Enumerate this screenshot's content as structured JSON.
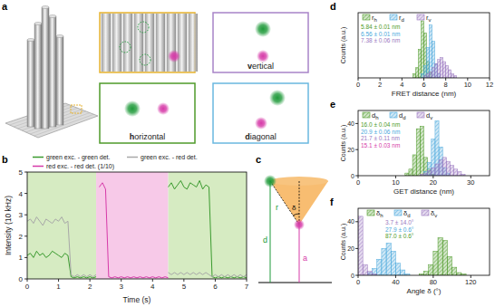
{
  "panel_labels": [
    "a",
    "b",
    "c",
    "d",
    "e",
    "f"
  ],
  "panel_a": {
    "views": [
      "vertical",
      "horizontal",
      "diagonal"
    ]
  },
  "panel_c": {
    "labels": [
      "r",
      "d",
      "a",
      "δ"
    ]
  },
  "chart_data": [
    {
      "type": "line",
      "x_label": "Time (s)",
      "y_label": "Intensity (10 kHz)",
      "x": [
        0,
        0.1,
        0.2,
        0.3,
        0.4,
        0.5,
        0.6,
        0.7,
        0.8,
        0.9,
        1,
        1.1,
        1.2,
        1.3,
        1.4,
        1.5,
        1.6,
        1.7,
        1.8,
        1.9,
        2,
        2.1,
        2.2,
        2.3,
        2.4,
        2.5,
        2.6,
        2.7,
        2.8,
        2.9,
        3,
        3.1,
        3.2,
        3.3,
        3.4,
        3.5,
        3.6,
        3.7,
        3.8,
        3.9,
        4,
        4.1,
        4.2,
        4.3,
        4.4,
        4.5,
        4.6,
        4.7,
        4.8,
        4.9,
        5,
        5.1,
        5.2,
        5.3,
        5.4,
        5.5,
        5.6,
        5.7,
        5.8,
        5.9,
        6,
        6.1,
        6.2,
        6.3,
        6.4,
        6.5,
        6.6,
        6.7,
        6.8,
        6.9,
        7
      ],
      "series": [
        {
          "name": "green exc. - green det.",
          "color": "#3a9a2e",
          "values": [
            1.1,
            1.2,
            1.0,
            1.3,
            1.1,
            1.2,
            1.0,
            1.1,
            1.3,
            1.2,
            1.1,
            1.0,
            1.2,
            1.1,
            0.1,
            0.05,
            0.1,
            0.05,
            0.1,
            0.05,
            0.1,
            0.05,
            0.1,
            null,
            null,
            null,
            null,
            null,
            null,
            null,
            null,
            null,
            null,
            null,
            null,
            null,
            null,
            null,
            null,
            null,
            null,
            null,
            null,
            null,
            null,
            4.3,
            4.5,
            4.2,
            4.4,
            4.6,
            4.3,
            4.2,
            4.5,
            4.4,
            4.3,
            4.6,
            4.2,
            4.4,
            4.3,
            0.1,
            0.05,
            0.1,
            0.05,
            0.1,
            0.05,
            0.1,
            0.05,
            0.1,
            0.05,
            0.1,
            0.05
          ]
        },
        {
          "name": "green exc. - red det.",
          "color": "#a8a8a8",
          "values": [
            2.7,
            2.8,
            2.6,
            2.9,
            2.7,
            2.5,
            2.8,
            2.7,
            2.6,
            2.8,
            2.7,
            2.9,
            2.6,
            2.7,
            0.2,
            0.1,
            0.2,
            0.1,
            0.2,
            0.1,
            0.2,
            0.1,
            0.2,
            null,
            null,
            null,
            null,
            null,
            null,
            null,
            null,
            null,
            null,
            null,
            null,
            null,
            null,
            null,
            null,
            null,
            null,
            null,
            null,
            null,
            null,
            0.3,
            0.2,
            0.3,
            0.2,
            0.3,
            0.2,
            0.3,
            0.2,
            0.3,
            0.2,
            0.3,
            0.2,
            0.3,
            0.2,
            0.1,
            0.2,
            0.1,
            0.2,
            0.1,
            0.2,
            0.1,
            0.2,
            0.1,
            0.2,
            0.1,
            0.2
          ]
        },
        {
          "name": "red exc. - red det. (1/10)",
          "color": "#d63aa8",
          "values": [
            null,
            null,
            null,
            null,
            null,
            null,
            null,
            null,
            null,
            null,
            null,
            null,
            null,
            null,
            null,
            null,
            null,
            null,
            null,
            null,
            null,
            null,
            null,
            4.3,
            4.5,
            4.2,
            0.1,
            0.05,
            0.1,
            0.05,
            0.1,
            0.05,
            0.1,
            0.05,
            0.1,
            0.05,
            0.1,
            0.05,
            0.1,
            0.05,
            0.1,
            0.05,
            0.1,
            0.05,
            0.1,
            0.05,
            null,
            null,
            null,
            null,
            null,
            null,
            null,
            null,
            null,
            null,
            null,
            null,
            null,
            null,
            null,
            null,
            null,
            null,
            null,
            null,
            null,
            null,
            null,
            null,
            null
          ]
        }
      ],
      "background_regions": [
        {
          "start": 0,
          "end": 2.2,
          "color": "#d6ebc2"
        },
        {
          "start": 2.2,
          "end": 4.5,
          "color": "#f7c9e8"
        },
        {
          "start": 4.5,
          "end": 7,
          "color": "#d6ebc2"
        }
      ],
      "xlim": [
        0,
        7
      ],
      "xticks": [
        0,
        1,
        2,
        3,
        4,
        5,
        6,
        7
      ],
      "ylim": [
        0,
        5
      ],
      "yticks": [
        0,
        1,
        2,
        3,
        4,
        5
      ],
      "legend": "top"
    },
    {
      "type": "histogram",
      "x_label": "FRET distance (nm)",
      "y_label": "Counts (a.u.)",
      "series": [
        {
          "name": "rh",
          "color": "#4f9a2a",
          "bins": [
            5.0,
            5.25,
            5.5,
            5.75,
            6.0,
            6.25,
            6.5,
            6.75
          ],
          "counts": [
            2,
            5,
            14,
            28,
            22,
            8,
            3
          ]
        },
        {
          "name": "rd",
          "color": "#4aa8dc",
          "bins": [
            5.75,
            6.0,
            6.25,
            6.5,
            6.75,
            7.0,
            7.25,
            7.5
          ],
          "counts": [
            2,
            6,
            15,
            26,
            18,
            7,
            2
          ]
        },
        {
          "name": "rv",
          "color": "#9a78c0",
          "bins": [
            6.0,
            6.25,
            6.5,
            6.75,
            7.0,
            7.25,
            7.5,
            7.75,
            8.0,
            8.25,
            8.5,
            8.75,
            9.0
          ],
          "counts": [
            1,
            2,
            3,
            5,
            7,
            9,
            10,
            8,
            6,
            4,
            2,
            1
          ]
        }
      ],
      "annotations": [
        {
          "text": "5.84 ± 0.01 nm",
          "color": "#4f9a2a"
        },
        {
          "text": "6.56 ± 0.01 nm",
          "color": "#4aa8dc"
        },
        {
          "text": "7.38 ± 0.06 nm",
          "color": "#9a78c0"
        }
      ],
      "xlim": [
        0,
        12
      ],
      "xticks": [
        0,
        2,
        4,
        6,
        8,
        10,
        12
      ],
      "ylim": [
        0,
        32
      ],
      "tick_labels": "x",
      "legend": "top"
    },
    {
      "type": "histogram",
      "x_label": "GET distance (nm)",
      "y_label": "Counts (a.u.)",
      "series": [
        {
          "name": "dh",
          "color": "#4f9a2a",
          "bins": [
            12.5,
            13.5,
            14.5,
            15.5,
            16.5,
            17.5,
            18.5,
            19.5,
            20.5
          ],
          "counts": [
            2,
            5,
            16,
            36,
            38,
            14,
            5,
            1
          ]
        },
        {
          "name": "dd",
          "color": "#4aa8dc",
          "bins": [
            17.5,
            18.5,
            19.5,
            20.5,
            21.5,
            22.5,
            23.5,
            24.5
          ],
          "counts": [
            3,
            10,
            28,
            42,
            22,
            6,
            2
          ]
        },
        {
          "name": "dv",
          "color": "#9a78c0",
          "bins": [
            16.5,
            17.5,
            18.5,
            19.5,
            20.5,
            21.5,
            22.5,
            23.5,
            24.5,
            25.5,
            26.5,
            27.5,
            28.5
          ],
          "counts": [
            1,
            2,
            4,
            6,
            9,
            12,
            14,
            11,
            8,
            5,
            3,
            1
          ]
        }
      ],
      "annotations": [
        {
          "text": "16.0 ± 0.04 nm",
          "color": "#4f9a2a"
        },
        {
          "text": "20.9 ± 0.06 nm",
          "color": "#4aa8dc"
        },
        {
          "text": "21.7 ± 0.11 nm",
          "color": "#9a78c0"
        },
        {
          "text": "15.1 ± 0.03 nm",
          "color": "#d63aa8"
        }
      ],
      "xlim": [
        0,
        35
      ],
      "xticks": [
        0,
        10,
        20,
        30
      ],
      "ylim": [
        0,
        50
      ],
      "yticks": [
        0,
        20,
        40
      ],
      "legend": "top"
    },
    {
      "type": "histogram",
      "x_label": "Angle δ (°)",
      "y_label": "Counts (a.u.)",
      "series": [
        {
          "name": "δh",
          "color": "#4f9a2a",
          "bins": [
            65,
            70,
            75,
            80,
            85,
            90,
            95,
            100,
            105,
            110,
            115
          ],
          "counts": [
            1,
            3,
            8,
            18,
            28,
            26,
            14,
            6,
            2,
            1
          ]
        },
        {
          "name": "δd",
          "color": "#4aa8dc",
          "bins": [
            10,
            15,
            20,
            25,
            30,
            35,
            40,
            45,
            50,
            55
          ],
          "counts": [
            2,
            5,
            12,
            20,
            24,
            18,
            9,
            4,
            1
          ]
        },
        {
          "name": "δv",
          "color": "#9a78c0",
          "bins": [
            0,
            5,
            10,
            15,
            20
          ],
          "counts": [
            44,
            8,
            3,
            1
          ]
        }
      ],
      "annotations": [
        {
          "text": "3.7 ± 14.0°",
          "color": "#9a78c0"
        },
        {
          "text": "27.9 ± 0.6°",
          "color": "#4aa8dc"
        },
        {
          "text": "87.0 ± 0.6°",
          "color": "#4f9a2a"
        }
      ],
      "xlim": [
        0,
        140
      ],
      "xticks": [
        0,
        40,
        80,
        120
      ],
      "ylim": [
        0,
        50
      ],
      "yticks": [
        0,
        20,
        40
      ],
      "legend": "top"
    }
  ]
}
